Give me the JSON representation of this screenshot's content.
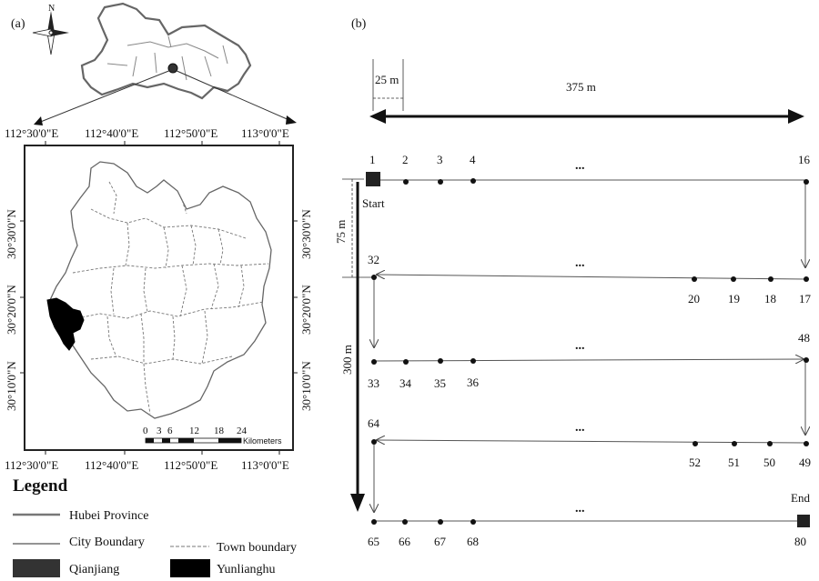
{
  "panel_a": {
    "label": "(a)",
    "north_label": "N",
    "lon_ticks": [
      "112°30'0\"E",
      "112°40'0\"E",
      "112°50'0\"E",
      "113°0'0\"E"
    ],
    "lat_ticks": [
      "30°30'0\"N",
      "30°20'0\"N",
      "30°10'0\"N"
    ],
    "scale": {
      "ticks": [
        "0",
        "3",
        "6",
        "12",
        "18",
        "24"
      ],
      "unit": "Kilometers"
    },
    "legend": {
      "title": "Legend",
      "items": [
        {
          "label": "Hubei Province",
          "symbol": "line",
          "color": "#777777"
        },
        {
          "label": "City Boundary",
          "symbol": "line",
          "color": "#555555"
        },
        {
          "label": "Town boundary",
          "symbol": "dashed-line",
          "color": "#777777"
        },
        {
          "label": "Qianjiang",
          "symbol": "fill",
          "color": "#333333"
        },
        {
          "label": "Yunlianghu",
          "symbol": "fill",
          "color": "#000000"
        }
      ]
    }
  },
  "panel_b": {
    "label": "(b)",
    "dim_25": "25 m",
    "dim_375": "375 m",
    "dim_75": "75 m",
    "dim_300": "300 m",
    "start_label": "Start",
    "end_label": "End",
    "ellipsis": "...",
    "rows": [
      {
        "labels": [
          "1",
          "2",
          "3",
          "4",
          "16"
        ]
      },
      {
        "labels": [
          "32",
          "20",
          "19",
          "18",
          "17"
        ]
      },
      {
        "labels": [
          "33",
          "34",
          "35",
          "36",
          "48"
        ]
      },
      {
        "labels": [
          "64",
          "52",
          "51",
          "50",
          "49"
        ]
      },
      {
        "labels": [
          "65",
          "66",
          "67",
          "68",
          "80"
        ]
      }
    ]
  }
}
